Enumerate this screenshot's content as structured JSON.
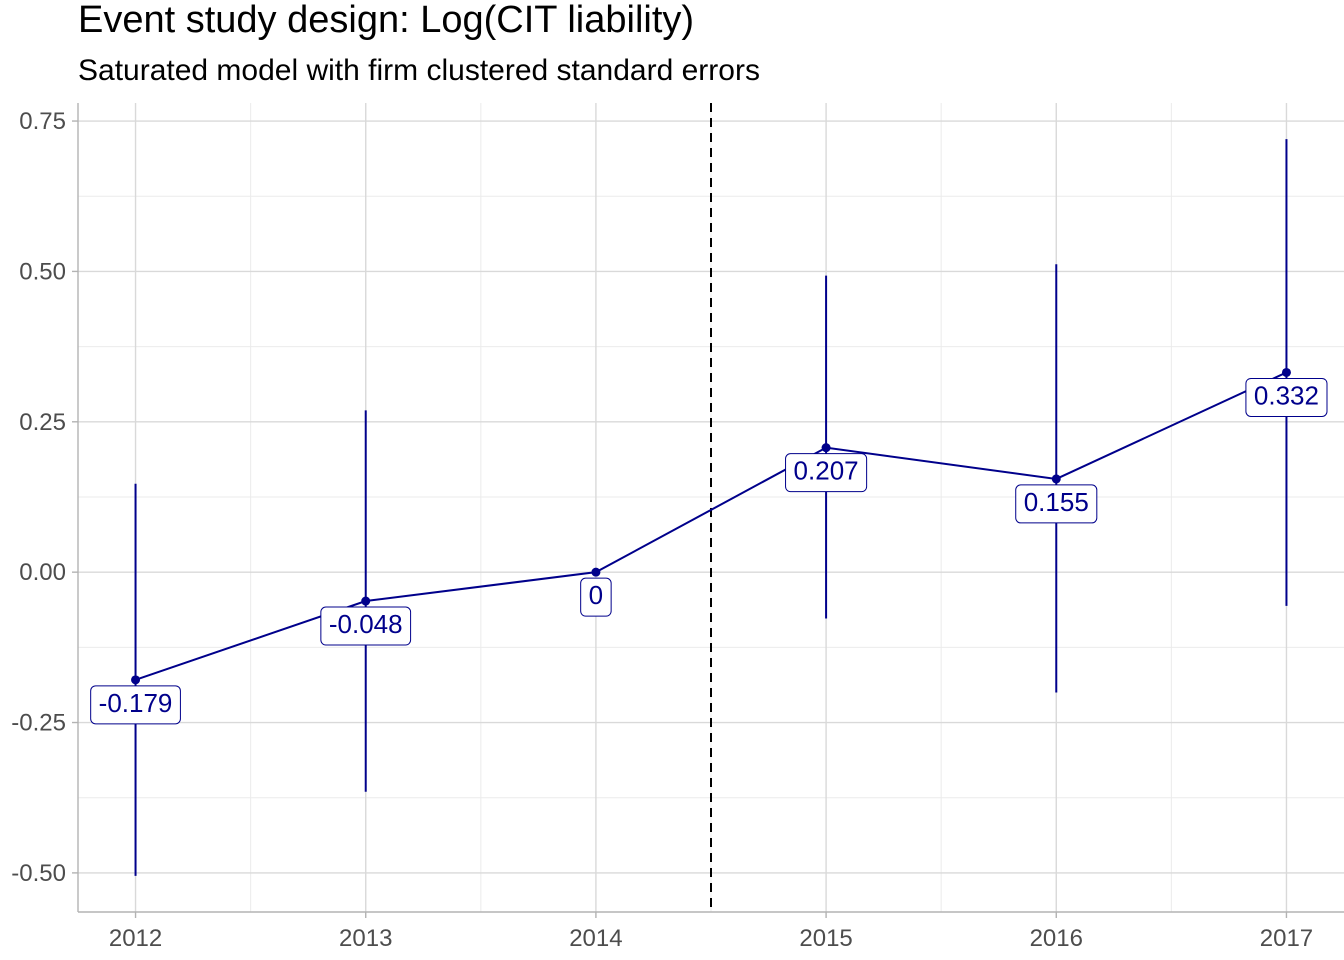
{
  "chart_data": {
    "type": "line",
    "title": "Event study design: Log(CIT liability)",
    "subtitle": "Saturated model with firm clustered standard errors",
    "xlabel": "",
    "ylabel": "",
    "x": [
      2012,
      2013,
      2014,
      2015,
      2016,
      2017
    ],
    "x_tick_labels": [
      "2012",
      "2013",
      "2014",
      "2015",
      "2016",
      "2017"
    ],
    "y_ticks": [
      0.75,
      0.5,
      0.25,
      0,
      -0.25,
      -0.5
    ],
    "y_tick_labels": [
      "0.75",
      "0.50",
      "0.25",
      "0.00",
      "-0.25",
      "-0.50"
    ],
    "xlim": [
      2011.75,
      2017.25
    ],
    "ylim": [
      -0.565,
      0.78
    ],
    "grid": true,
    "event_line_x": 2014.5,
    "series": [
      {
        "values": [
          -0.179,
          -0.048,
          0,
          0.207,
          0.155,
          0.332
        ],
        "labels": [
          "-0.179",
          "-0.048",
          "0",
          "0.207",
          "0.155",
          "0.332"
        ],
        "ci_low": [
          -0.505,
          -0.365,
          0,
          -0.077,
          -0.2,
          -0.056
        ],
        "ci_high": [
          0.147,
          0.269,
          0,
          0.493,
          0.512,
          0.72
        ],
        "color": "#00008b"
      }
    ]
  }
}
